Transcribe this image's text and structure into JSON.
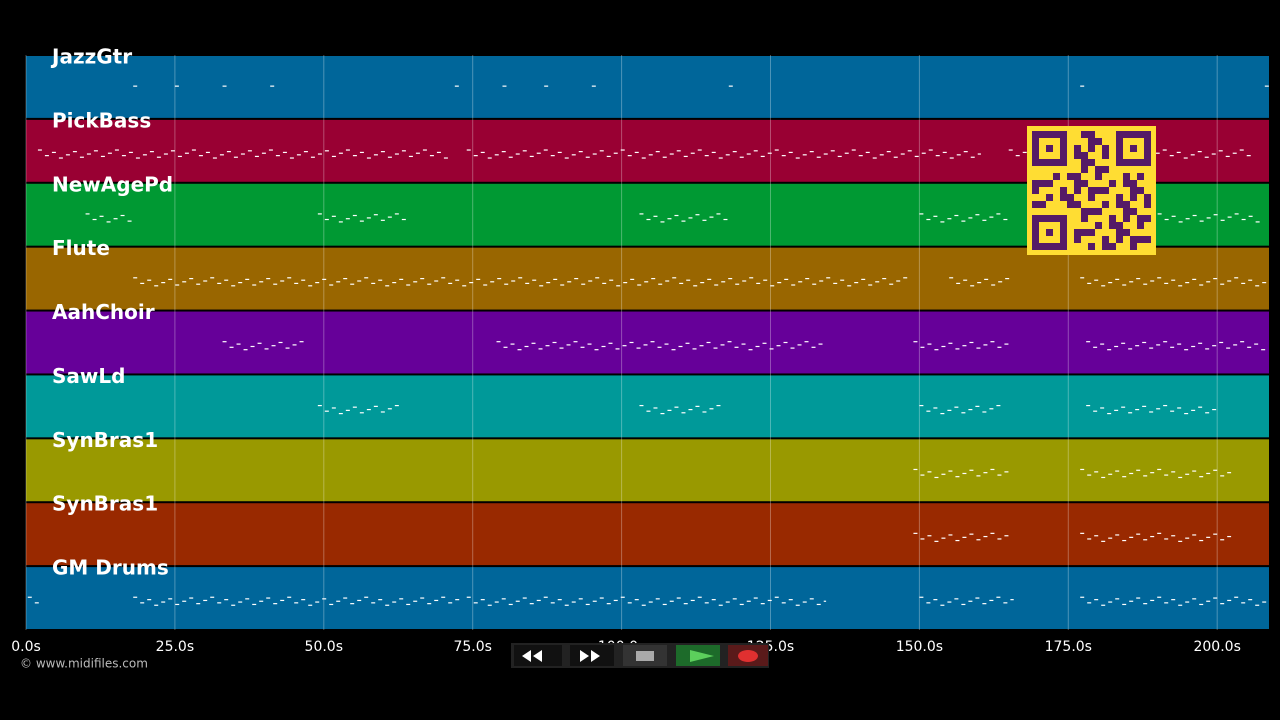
{
  "timeline": {
    "xlim": [
      0,
      208.7
    ],
    "ticks": [
      {
        "value": 0,
        "label": "0.0s"
      },
      {
        "value": 25,
        "label": "25.0s"
      },
      {
        "value": 50,
        "label": "50.0s"
      },
      {
        "value": 75,
        "label": "75.0s"
      },
      {
        "value": 100,
        "label": "100.0s"
      },
      {
        "value": 125,
        "label": "125.0s"
      },
      {
        "value": 150,
        "label": "150.0s"
      },
      {
        "value": 175,
        "label": "175.0s"
      },
      {
        "value": 200,
        "label": "200.0s"
      }
    ]
  },
  "tracks": [
    {
      "name": "JazzGtr",
      "color": "#00669a",
      "note_spans": [
        [
          18,
          19
        ],
        [
          25,
          26
        ],
        [
          33,
          34
        ],
        [
          41,
          42
        ],
        [
          72,
          73
        ],
        [
          80,
          81
        ],
        [
          87,
          88
        ],
        [
          95,
          96
        ],
        [
          118,
          119
        ],
        [
          177,
          178
        ],
        [
          208,
          208.5
        ]
      ]
    },
    {
      "name": "PickBass",
      "color": "#990033",
      "note_spans": [
        [
          2,
          71
        ],
        [
          74,
          160
        ],
        [
          165,
          206
        ]
      ]
    },
    {
      "name": "NewAgePd",
      "color": "#009933",
      "note_spans": [
        [
          10,
          18
        ],
        [
          49,
          64
        ],
        [
          103,
          118
        ],
        [
          150,
          165
        ],
        [
          190,
          207
        ]
      ]
    },
    {
      "name": "Flute",
      "color": "#996600",
      "note_spans": [
        [
          18,
          148
        ],
        [
          155,
          165
        ],
        [
          177,
          208
        ]
      ]
    },
    {
      "name": "AahChoir",
      "color": "#660099",
      "note_spans": [
        [
          33,
          47
        ],
        [
          79,
          134
        ],
        [
          149,
          165
        ],
        [
          178,
          208
        ]
      ]
    },
    {
      "name": "SawLd",
      "color": "#009999",
      "note_spans": [
        [
          49,
          63
        ],
        [
          103,
          117
        ],
        [
          150,
          164
        ],
        [
          178,
          200
        ]
      ]
    },
    {
      "name": "SynBras1",
      "color": "#999900",
      "note_spans": [
        [
          149,
          165
        ],
        [
          177,
          202
        ]
      ]
    },
    {
      "name": "SynBras1",
      "color": "#992900",
      "note_spans": [
        [
          149,
          165
        ],
        [
          177,
          202
        ]
      ]
    },
    {
      "name": "GM Drums",
      "color": "#00669a",
      "note_spans": [
        [
          0.3,
          2
        ],
        [
          18,
          72.5
        ],
        [
          74,
          134
        ],
        [
          150,
          165.5
        ],
        [
          177,
          208
        ]
      ]
    }
  ],
  "footer": {
    "copyright": "© www.midifiles.com"
  }
}
